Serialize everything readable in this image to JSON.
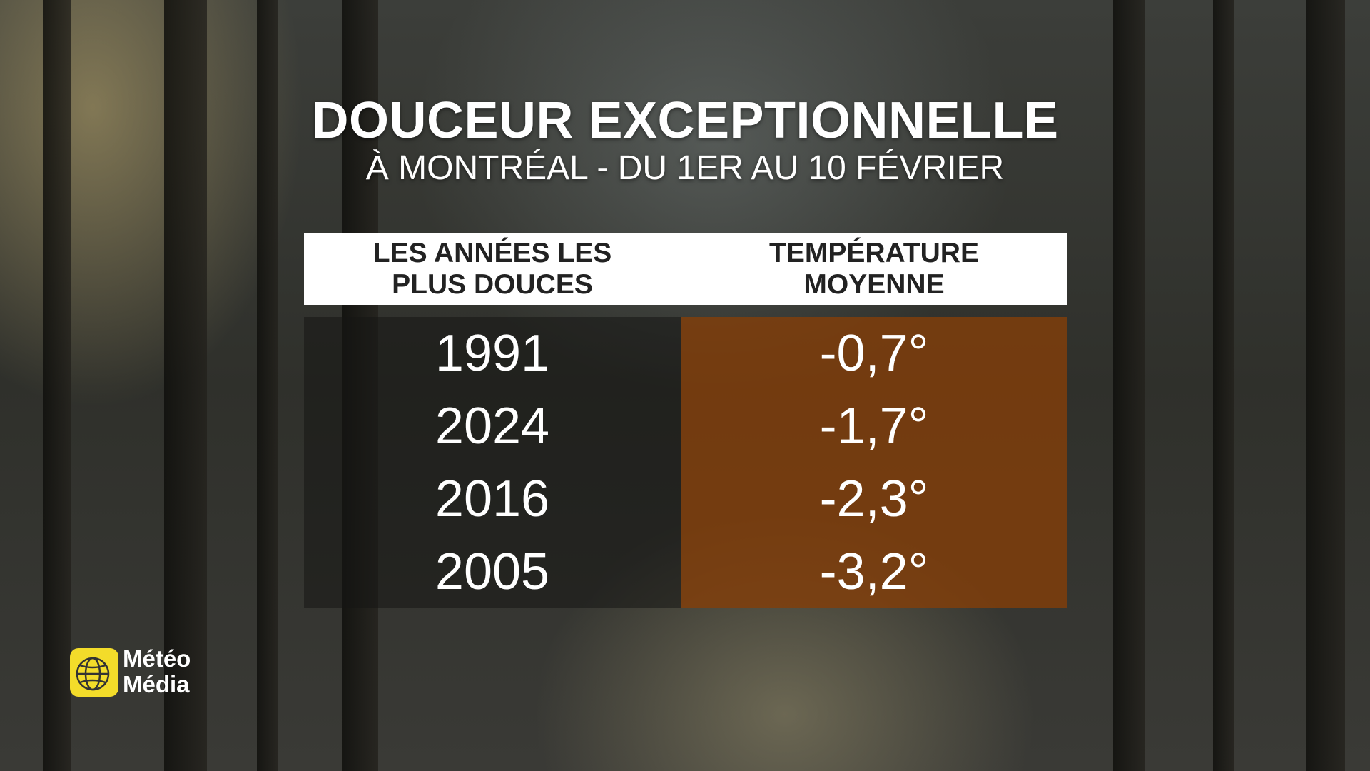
{
  "header": {
    "title": "DOUCEUR EXCEPTIONNELLE",
    "subtitle": "À MONTRÉAL - DU 1ER AU 10 FÉVRIER"
  },
  "table": {
    "columns": [
      [
        "LES ANNÉES LES",
        "PLUS DOUCES"
      ],
      [
        "TEMPÉRATURE",
        "MOYENNE"
      ]
    ],
    "rows": [
      [
        "1991",
        "-0,7°"
      ],
      [
        "2024",
        "-1,7°"
      ],
      [
        "2016",
        "-2,3°"
      ],
      [
        "2005",
        "-3,2°"
      ]
    ]
  },
  "logo": {
    "line1": "Météo",
    "line2": "Média"
  }
}
